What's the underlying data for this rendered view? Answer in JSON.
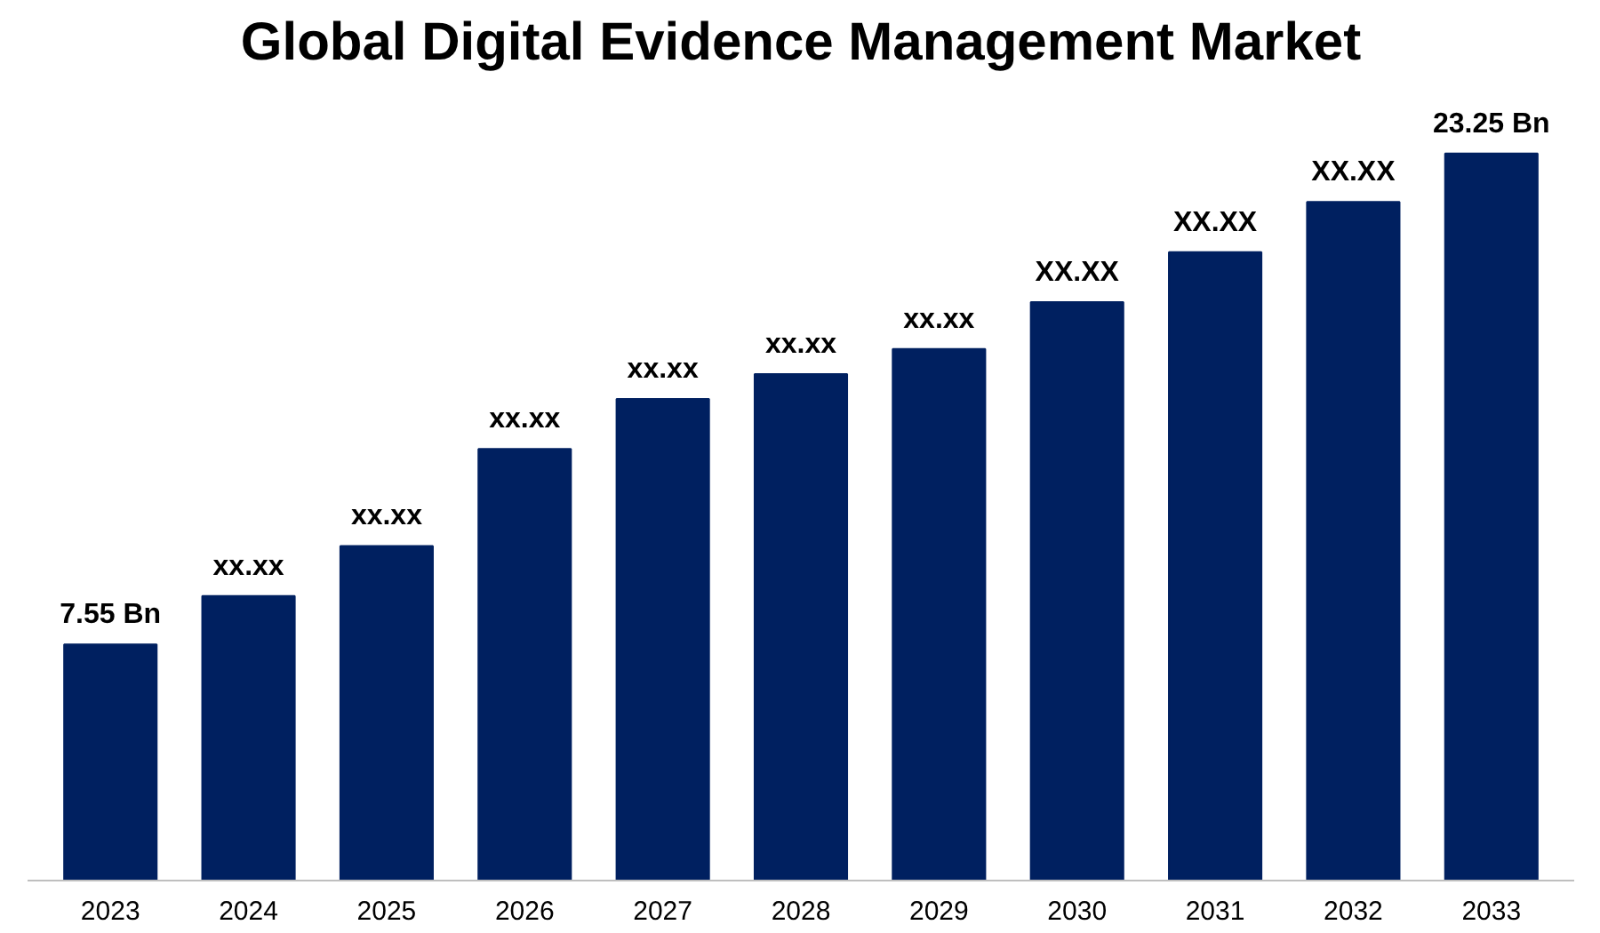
{
  "chart_data": {
    "type": "bar",
    "title": "Global Digital Evidence Management Market",
    "categories": [
      "2023",
      "2024",
      "2025",
      "2026",
      "2027",
      "2028",
      "2029",
      "2030",
      "2031",
      "2032",
      "2033"
    ],
    "values": [
      7.55,
      9.1,
      10.7,
      13.8,
      15.4,
      16.2,
      17.0,
      18.5,
      20.1,
      21.7,
      23.25
    ],
    "value_labels": [
      "7.55 Bn",
      "xx.xx",
      "xx.xx",
      "xx.xx",
      "xx.xx",
      "xx.xx",
      "xx.xx",
      "XX.XX",
      "XX.XX",
      "XX.XX",
      "23.25 Bn"
    ],
    "color": "#002060",
    "tick_labels": "x"
  }
}
